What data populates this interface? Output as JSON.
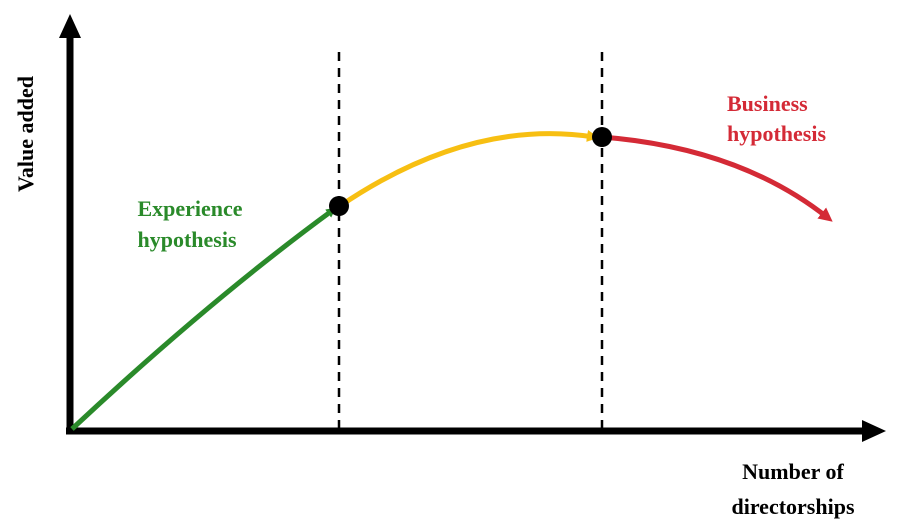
{
  "axes": {
    "y_label": "Value added",
    "x_label_line1": "Number of",
    "x_label_line2": "directorships"
  },
  "segments": {
    "experience": {
      "label_line1": "Experience",
      "label_line2": "hypothesis",
      "color": "#2a8a2a"
    },
    "middle": {
      "color": "#f7bf12"
    },
    "business": {
      "label_line1": "Business",
      "label_line2": "hypothesis",
      "color": "#d42a36"
    }
  },
  "colors": {
    "axis": "#000000",
    "marker": "#000000",
    "divider": "#000000"
  }
}
